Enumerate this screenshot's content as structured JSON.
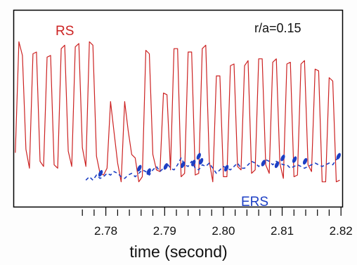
{
  "chart_data": {
    "type": "line",
    "xlabel": "time (second)",
    "ylabel": "",
    "xlim": [
      2.7645,
      2.8201
    ],
    "ylim": [
      0,
      1
    ],
    "x_ticks": [
      2.78,
      2.79,
      2.8,
      2.81,
      2.82
    ],
    "x_tick_labels": [
      "2.78",
      "2.79",
      "2.80",
      "2.81",
      "2.82"
    ],
    "minor_tick_step": 0.002,
    "minor_tick_start": 2.776,
    "annotation": "r/a=0.15",
    "grid": false,
    "series": [
      {
        "name": "RS",
        "color": "#cc2222",
        "style": "solid",
        "x": [
          2.7646,
          2.7652,
          2.7658,
          2.7664,
          2.767,
          2.7676,
          2.7682,
          2.7688,
          2.7694,
          2.77,
          2.7706,
          2.7712,
          2.7718,
          2.7724,
          2.773,
          2.7736,
          2.7742,
          2.7748,
          2.7754,
          2.776,
          2.7766,
          2.7772,
          2.7778,
          2.7784,
          2.779,
          2.7796,
          2.7802,
          2.7808,
          2.7814,
          2.782,
          2.7826,
          2.7832,
          2.7838,
          2.7844,
          2.785,
          2.7856,
          2.7862,
          2.7868,
          2.7874,
          2.788,
          2.7886,
          2.7892,
          2.7898,
          2.7904,
          2.791,
          2.7916,
          2.7922,
          2.7928,
          2.7934,
          2.794,
          2.7946,
          2.7952,
          2.7958,
          2.7964,
          2.797,
          2.7976,
          2.7982,
          2.7988,
          2.7994,
          2.8,
          2.8006,
          2.8012,
          2.8018,
          2.8024,
          2.803,
          2.8036,
          2.8042,
          2.8048,
          2.8054,
          2.806,
          2.8066,
          2.8072,
          2.8078,
          2.8084,
          2.809,
          2.8096,
          2.8102,
          2.8108,
          2.8114,
          2.812,
          2.8126,
          2.8132,
          2.8138,
          2.8144,
          2.815,
          2.8156,
          2.8162,
          2.8168,
          2.8174,
          2.818,
          2.8186,
          2.8192,
          2.8198
        ],
        "values": [
          0.27,
          0.92,
          0.84,
          0.29,
          0.18,
          0.85,
          0.86,
          0.22,
          0.19,
          0.83,
          0.84,
          0.2,
          0.18,
          0.88,
          0.9,
          0.28,
          0.19,
          0.89,
          0.91,
          0.3,
          0.19,
          0.92,
          0.9,
          0.25,
          0.15,
          0.14,
          0.18,
          0.57,
          0.39,
          0.21,
          0.1,
          0.57,
          0.4,
          0.26,
          0.24,
          0.1,
          0.13,
          0.87,
          0.85,
          0.26,
          0.17,
          0.16,
          0.62,
          0.61,
          0.17,
          0.88,
          0.88,
          0.13,
          0.15,
          0.86,
          0.86,
          0.14,
          0.15,
          0.88,
          0.9,
          0.22,
          0.1,
          0.72,
          0.72,
          0.13,
          0.13,
          0.78,
          0.79,
          0.19,
          0.17,
          0.78,
          0.81,
          0.15,
          0.17,
          0.82,
          0.82,
          0.2,
          0.15,
          0.8,
          0.82,
          0.21,
          0.12,
          0.79,
          0.8,
          0.13,
          0.14,
          0.79,
          0.81,
          0.2,
          0.16,
          0.76,
          0.75,
          0.1,
          0.1,
          0.71,
          0.69,
          0.1,
          0.11
        ]
      },
      {
        "name": "ERS",
        "color": "#1d3fc4",
        "style": "dashed",
        "x": [
          2.7766,
          2.7772,
          2.7778,
          2.7784,
          2.779,
          2.7796,
          2.7802,
          2.7808,
          2.7814,
          2.782,
          2.7826,
          2.7832,
          2.7838,
          2.7844,
          2.785,
          2.7856,
          2.7862,
          2.7868,
          2.7874,
          2.788,
          2.7886,
          2.7892,
          2.7898,
          2.7904,
          2.791,
          2.7916,
          2.7922,
          2.7928,
          2.7934,
          2.794,
          2.7946,
          2.7952,
          2.7958,
          2.7964,
          2.797,
          2.7976,
          2.7982,
          2.7988,
          2.7994,
          2.8,
          2.8006,
          2.8012,
          2.8018,
          2.8024,
          2.803,
          2.8036,
          2.8042,
          2.8048,
          2.8054,
          2.806,
          2.8066,
          2.8072,
          2.8078,
          2.8084,
          2.809,
          2.8096,
          2.8102,
          2.8108,
          2.8114,
          2.812,
          2.8126,
          2.8132,
          2.8138,
          2.8144,
          2.815,
          2.8156,
          2.8162,
          2.8168,
          2.8174,
          2.818,
          2.8186,
          2.8192,
          2.8198
        ],
        "values": [
          0.11,
          0.13,
          0.11,
          0.14,
          0.12,
          0.13,
          0.15,
          0.14,
          0.16,
          0.15,
          0.13,
          0.12,
          0.14,
          0.15,
          0.13,
          0.15,
          0.17,
          0.16,
          0.14,
          0.17,
          0.19,
          0.16,
          0.18,
          0.21,
          0.18,
          0.17,
          0.2,
          0.24,
          0.2,
          0.19,
          0.22,
          0.18,
          0.17,
          0.2,
          0.19,
          0.21,
          0.18,
          0.15,
          0.17,
          0.19,
          0.18,
          0.17,
          0.19,
          0.21,
          0.18,
          0.18,
          0.2,
          0.22,
          0.21,
          0.19,
          0.21,
          0.23,
          0.22,
          0.2,
          0.22,
          0.21,
          0.2,
          0.2,
          0.18,
          0.19,
          0.2,
          0.19,
          0.18,
          0.19,
          0.2,
          0.21,
          0.2,
          0.19,
          0.2,
          0.21,
          0.2,
          0.23,
          0.25
        ]
      }
    ],
    "markers": {
      "series": "ERS",
      "color": "#1d3fc4",
      "x": [
        2.7791,
        2.7857,
        2.7873,
        2.7902,
        2.7931,
        2.7949,
        2.7958,
        2.7962,
        2.8005,
        2.8068,
        2.8091,
        2.8101,
        2.8121,
        2.8139,
        2.8196
      ],
      "values": [
        0.15,
        0.18,
        0.16,
        0.19,
        0.2,
        0.21,
        0.25,
        0.22,
        0.18,
        0.21,
        0.2,
        0.24,
        0.23,
        0.22,
        0.25
      ]
    }
  }
}
